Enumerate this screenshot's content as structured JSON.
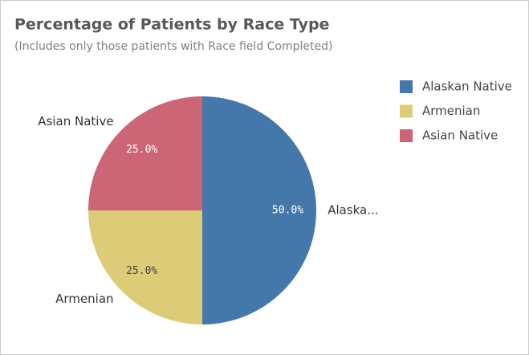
{
  "chart_data": {
    "type": "pie",
    "title": "Percentage of Patients by Race Type",
    "subtitle": "(Includes only those patients with Race field Completed)",
    "categories": [
      "Alaskan Native",
      "Armenian",
      "Asian Native"
    ],
    "values": [
      50,
      25,
      25
    ],
    "value_labels": [
      "50.0%",
      "25.0%",
      "25.0%"
    ],
    "outer_labels": [
      "Alaska...",
      "Armenian",
      "Asian Native"
    ],
    "colors": [
      "#4477aa",
      "#ddcc77",
      "#cc6677"
    ],
    "legend": "right"
  }
}
